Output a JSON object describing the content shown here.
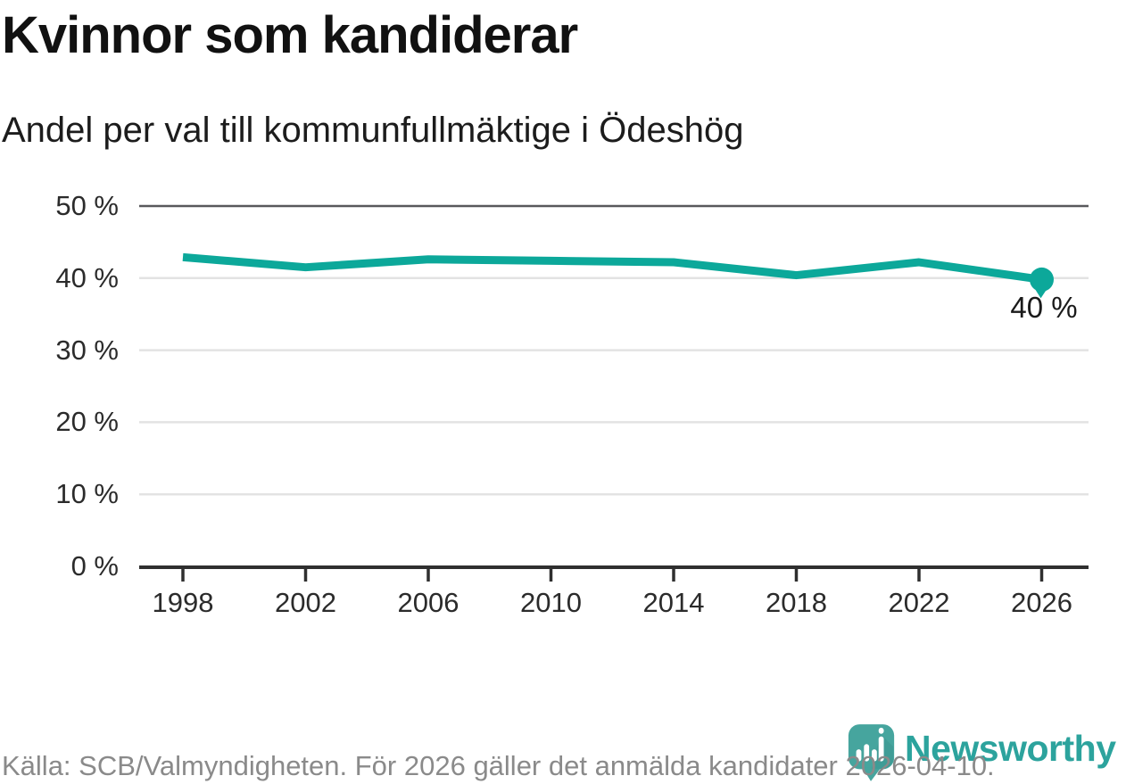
{
  "chart": {
    "title": "Kvinnor som kandiderar",
    "subtitle": "Andel per val till kommunfullmäktige i Ödeshög"
  },
  "chart_data": {
    "type": "line",
    "x": [
      1998,
      2002,
      2006,
      2010,
      2014,
      2018,
      2022,
      2026
    ],
    "values": [
      42.9,
      41.5,
      42.6,
      42.4,
      42.2,
      40.4,
      42.2,
      39.8
    ],
    "title": "Kvinnor som kandiderar",
    "subtitle": "Andel per val till kommunfullmäktige i Ödeshög",
    "xlabel": "",
    "ylabel": "",
    "ylim": [
      0,
      50
    ],
    "y_ticks": [
      0,
      10,
      20,
      30,
      40,
      50
    ],
    "y_tick_labels": [
      "0 %",
      "10 %",
      "20 %",
      "30 %",
      "40 %",
      "50 %"
    ],
    "x_tick_labels": [
      "1998",
      "2002",
      "2006",
      "2010",
      "2014",
      "2018",
      "2022",
      "2026"
    ],
    "last_point_label": "40 %",
    "grid": "horizontal",
    "legend": "none",
    "line_color": "#0ca89a",
    "top_gridline_color": "#58585c",
    "gridline_color": "#e3e3e3",
    "axis_color": "#2f2f2f"
  },
  "footer": {
    "source": "Källa: SCB/Valmyndigheten. För 2026 gäller det anmälda kandidater 2026-04-10.",
    "brand": "Newsworthy"
  },
  "icons": {
    "logo": "newsworthy-pin-barchart-icon"
  },
  "colors": {
    "accent": "#0ca89a",
    "logo_icon": "#46a59e",
    "logo_text": "#2ca39d",
    "footer_text": "#8a8a8a",
    "title_text": "#111111"
  }
}
